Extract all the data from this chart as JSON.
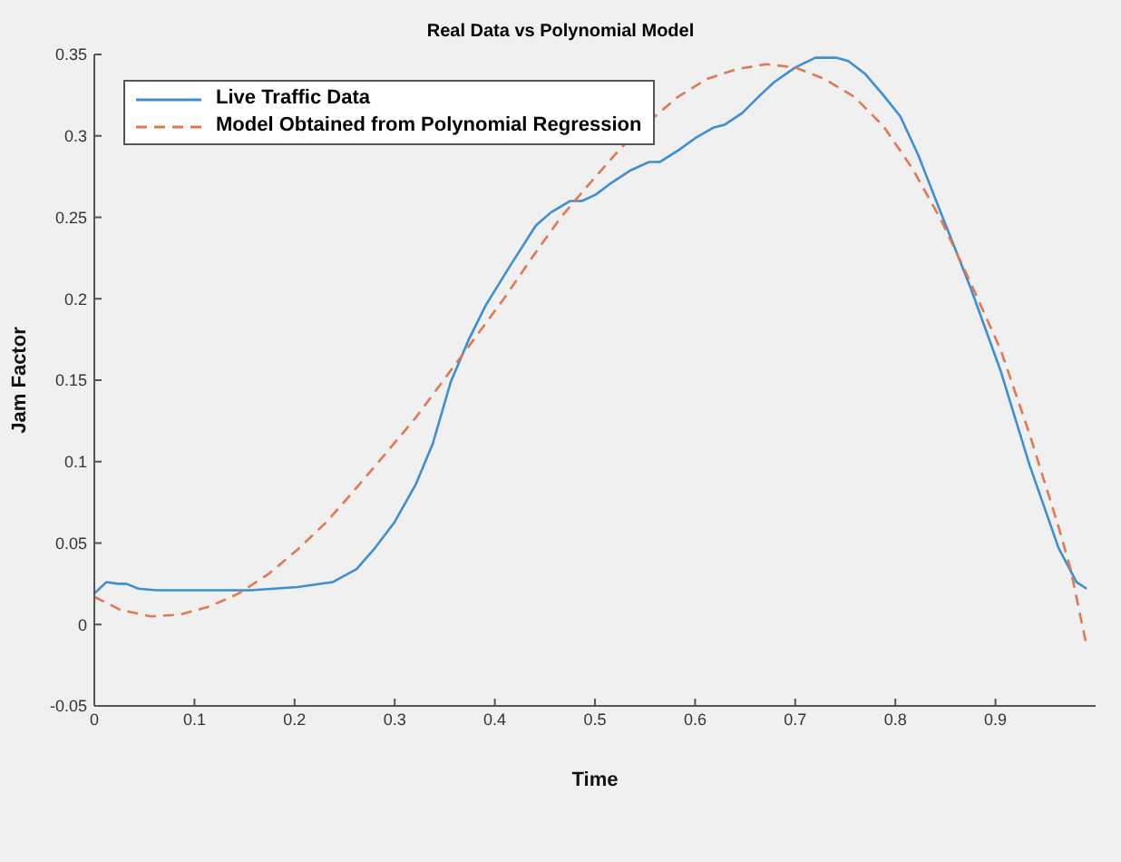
{
  "chart_data": {
    "type": "line",
    "title": "Real Data vs Polynomial Model",
    "xlabel": "Time",
    "ylabel": "Jam Factor",
    "xlim": [
      0,
      1
    ],
    "xticks": [
      0,
      0.1,
      0.2,
      0.3,
      0.4,
      0.5,
      0.6,
      0.7,
      0.8,
      0.9
    ],
    "ylim": [
      -0.05,
      0.35
    ],
    "yticks": [
      -0.05,
      0,
      0.05,
      0.1,
      0.15,
      0.2,
      0.25,
      0.3,
      0.35
    ],
    "grid": false,
    "legend": "top left",
    "marker": "none",
    "series": [
      {
        "name": "Live Traffic Data",
        "color": "#3d8fd1",
        "line_style": "solid",
        "x": [
          0,
          0.012,
          0.0235,
          0.032,
          0.044,
          0.062,
          0.1,
          0.156,
          0.203,
          0.238,
          0.262,
          0.279,
          0.3,
          0.321,
          0.338,
          0.356,
          0.374,
          0.391,
          0.415,
          0.441,
          0.456,
          0.475,
          0.487,
          0.501,
          0.516,
          0.536,
          0.554,
          0.565,
          0.583,
          0.601,
          0.618,
          0.63,
          0.647,
          0.665,
          0.679,
          0.7,
          0.72,
          0.741,
          0.753,
          0.77,
          0.788,
          0.805,
          0.823,
          0.846,
          0.875,
          0.905,
          0.934,
          0.963,
          0.981,
          0.991
        ],
        "values": [
          0.019,
          0.026,
          0.025,
          0.025,
          0.022,
          0.021,
          0.021,
          0.021,
          0.023,
          0.026,
          0.034,
          0.046,
          0.063,
          0.086,
          0.111,
          0.149,
          0.175,
          0.196,
          0.22,
          0.245,
          0.253,
          0.26,
          0.26,
          0.264,
          0.271,
          0.279,
          0.284,
          0.284,
          0.291,
          0.299,
          0.305,
          0.307,
          0.314,
          0.325,
          0.333,
          0.342,
          0.348,
          0.348,
          0.346,
          0.338,
          0.325,
          0.312,
          0.288,
          0.252,
          0.207,
          0.156,
          0.098,
          0.047,
          0.026,
          0.022
        ]
      },
      {
        "name": "Model Obtained from Polynomial Regression",
        "color": "#e07850",
        "line_style": "dashed",
        "x": [
          0,
          0.026,
          0.056,
          0.085,
          0.115,
          0.144,
          0.174,
          0.203,
          0.232,
          0.262,
          0.291,
          0.321,
          0.35,
          0.379,
          0.409,
          0.438,
          0.466,
          0.495,
          0.525,
          0.554,
          0.583,
          0.612,
          0.642,
          0.671,
          0.7,
          0.729,
          0.759,
          0.788,
          0.817,
          0.846,
          0.875,
          0.905,
          0.934,
          0.963,
          0.975,
          0.991
        ],
        "values": [
          0.017,
          0.009,
          0.005,
          0.006,
          0.011,
          0.019,
          0.031,
          0.046,
          0.063,
          0.084,
          0.105,
          0.127,
          0.151,
          0.175,
          0.2,
          0.226,
          0.25,
          0.271,
          0.292,
          0.309,
          0.324,
          0.335,
          0.341,
          0.344,
          0.342,
          0.335,
          0.324,
          0.306,
          0.28,
          0.248,
          0.21,
          0.169,
          0.117,
          0.06,
          0.034,
          -0.013
        ]
      }
    ]
  }
}
